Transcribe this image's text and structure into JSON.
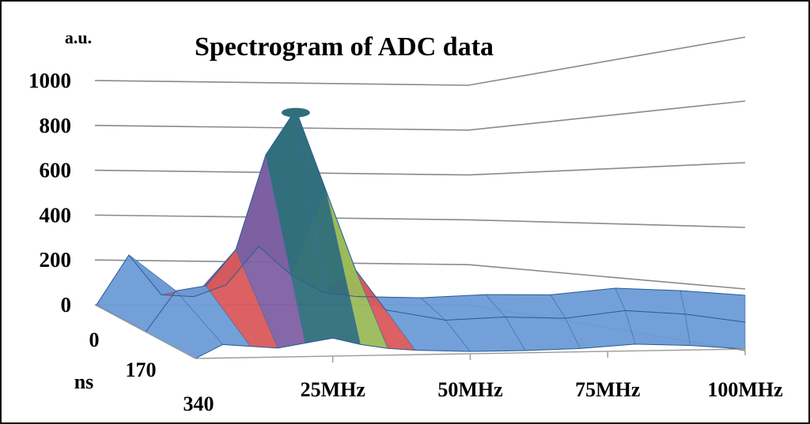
{
  "chart_data": {
    "type": "3d-surface",
    "title": "Spectrogram of ADC data",
    "ylabel": "a.u.",
    "zlim": [
      0,
      1000
    ],
    "z_ticks": [
      "0",
      "200",
      "400",
      "600",
      "800",
      "1000"
    ],
    "x_ticks": [
      "25MHz",
      "50MHz",
      "75MHz",
      "100MHz"
    ],
    "x_tick_values": [
      25,
      50,
      75,
      100
    ],
    "xlim": [
      0,
      100
    ],
    "depth_label": "ns",
    "depth_ticks": [
      "0",
      "170",
      "340"
    ],
    "depth_values": [
      0,
      170,
      340
    ],
    "band_colors": [
      "#6b9bd6",
      "#d9585a",
      "#9bbb59",
      "#7f5fa3",
      "#2f6f7a"
    ],
    "band_edges": [
      0,
      200,
      400,
      600,
      800,
      1000
    ],
    "series": [
      {
        "name": "0 ns",
        "x": [
          0,
          5,
          10,
          15,
          20,
          25,
          30,
          35,
          40,
          50,
          60,
          70,
          80,
          90,
          100
        ],
        "values": [
          0,
          220,
          40,
          30,
          80,
          250,
          120,
          40,
          20,
          10,
          20,
          15,
          40,
          25,
          0
        ]
      },
      {
        "name": "170 ns",
        "x": [
          0,
          5,
          10,
          15,
          20,
          25,
          30,
          35,
          40,
          50,
          60,
          70,
          80,
          90,
          100
        ],
        "values": [
          0,
          180,
          200,
          360,
          780,
          980,
          620,
          260,
          80,
          30,
          40,
          30,
          60,
          40,
          0
        ]
      },
      {
        "name": "340 ns",
        "x": [
          0,
          5,
          10,
          15,
          20,
          25,
          30,
          35,
          40,
          50,
          60,
          70,
          80,
          90,
          100
        ],
        "values": [
          0,
          60,
          50,
          40,
          60,
          80,
          50,
          30,
          20,
          10,
          10,
          15,
          30,
          20,
          0
        ]
      }
    ]
  }
}
